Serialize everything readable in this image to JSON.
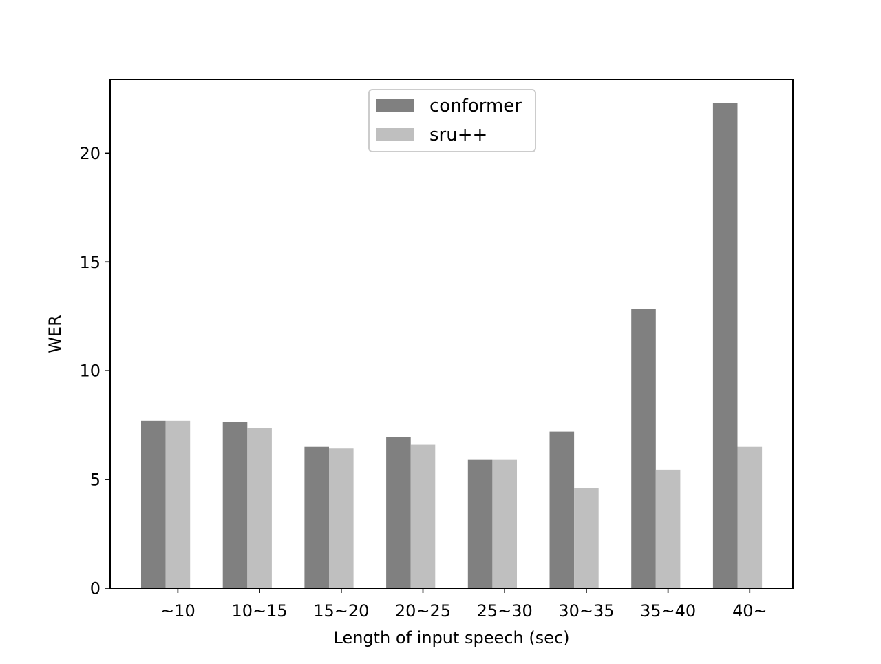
{
  "chart_data": {
    "type": "bar",
    "title": "",
    "xlabel": "Length of input speech (sec)",
    "ylabel": "WER",
    "categories": [
      "~10",
      "10~15",
      "15~20",
      "20~25",
      "25~30",
      "30~35",
      "35~40",
      "40~"
    ],
    "series": [
      {
        "name": "conformer",
        "color": "#808080",
        "values": [
          7.7,
          7.65,
          6.5,
          6.95,
          5.9,
          7.2,
          12.85,
          22.3
        ]
      },
      {
        "name": "sru++",
        "color": "#bfbfbf",
        "values": [
          7.7,
          7.35,
          6.42,
          6.6,
          5.9,
          4.6,
          5.45,
          6.5
        ]
      }
    ],
    "ylim": [
      0,
      23.4
    ],
    "yticks": [
      0,
      5,
      10,
      15,
      20
    ],
    "grid": false,
    "legend_position": "top-center"
  }
}
